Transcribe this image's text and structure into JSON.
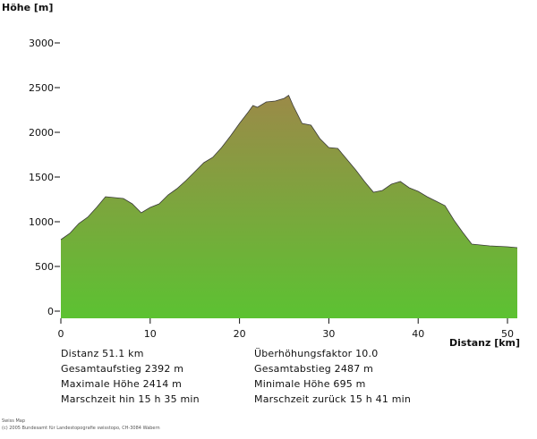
{
  "chart_data": {
    "type": "area",
    "ylabel": "Höhe [m]",
    "xlabel": "Distanz [km]",
    "xlim": [
      0,
      51.1
    ],
    "ylim": [
      0,
      3000
    ],
    "xticks": [
      0,
      10,
      20,
      30,
      40,
      50
    ],
    "yticks": [
      0,
      500,
      1000,
      1500,
      2000,
      2500,
      3000
    ],
    "fill_top_color": "#9b8a48",
    "fill_bottom_color": "#5cc232",
    "x": [
      0,
      1,
      2,
      3,
      4,
      5,
      6,
      7,
      8,
      9,
      10,
      11,
      12,
      13,
      14,
      15,
      16,
      17,
      18,
      19,
      20,
      21,
      21.5,
      22,
      23,
      24,
      25,
      25.5,
      26,
      27,
      28,
      29,
      30,
      31,
      32,
      33,
      34,
      35,
      36,
      37,
      38,
      39,
      40,
      41,
      42,
      43,
      44,
      45,
      46,
      47,
      48,
      49,
      50,
      51.1
    ],
    "y": [
      800,
      870,
      980,
      1050,
      1160,
      1280,
      1270,
      1260,
      1200,
      1100,
      1160,
      1200,
      1300,
      1370,
      1460,
      1560,
      1660,
      1720,
      1830,
      1960,
      2100,
      2230,
      2300,
      2280,
      2340,
      2350,
      2380,
      2414,
      2300,
      2100,
      2080,
      1930,
      1830,
      1820,
      1700,
      1580,
      1450,
      1330,
      1350,
      1420,
      1450,
      1380,
      1340,
      1280,
      1230,
      1180,
      1020,
      880,
      750,
      740,
      730,
      725,
      720,
      710
    ]
  },
  "stats": {
    "distanz": "Distanz  51.1 km",
    "gesamtaufstieg": "Gesamtaufstieg  2392 m",
    "maximale_hoehe": "Maximale Höhe  2414 m",
    "marschzeit_hin": "Marschzeit hin  15 h 35 min",
    "ueberhoehungsfaktor": "Überhöhungsfaktor 10.0",
    "gesamtabstieg": "Gesamtabstieg  2487 m",
    "minimale_hoehe": "Minimale Höhe  695 m",
    "marschzeit_zurueck": "Marschzeit zurück  15 h 41 min"
  },
  "credits": {
    "line1": "Swiss Map",
    "line2": "(c) 2005 Bundesamt für Landestopografie swisstopo, CH-3084 Wabern"
  }
}
